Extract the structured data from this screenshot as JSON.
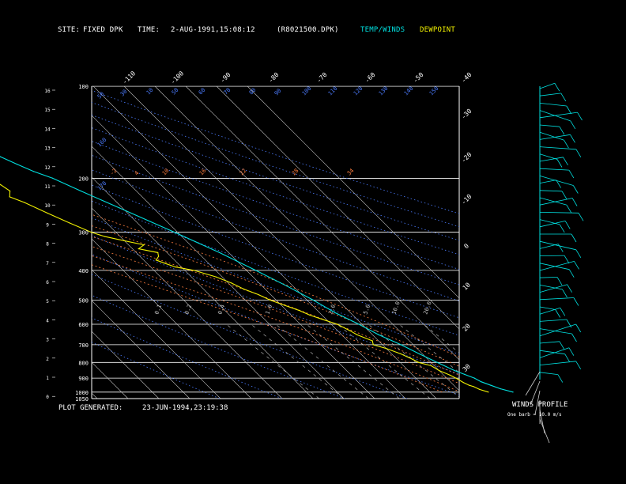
{
  "header": {
    "site_label": "SITE:",
    "site_value": "FIXED DPK",
    "time_label": "TIME:",
    "time_value": "2-AUG-1991,15:08:12",
    "file": "(R8021500.DPK)",
    "legend_temp": "TEMP/WINDS",
    "legend_dew": "DEWPOINT"
  },
  "footer": {
    "plot_generated_label": "PLOT GENERATED:",
    "plot_generated_value": "23-JUN-1994,23:19:38"
  },
  "wind_profile": {
    "title": "WINDS PROFILE",
    "note": "One barb = 10.0 m/s"
  },
  "colors": {
    "temp": "#00e0e0",
    "dewpoint": "#f0f000",
    "grid": "#ffffff",
    "isotherm": "#c8c8c8",
    "dry_adiabat": "#4c7cff",
    "moist_adiabat": "#ff7f40",
    "mixing_ratio": "#c0c0c0"
  },
  "chart_data": {
    "type": "line",
    "title": "",
    "ylabel_left_km": "",
    "pressure_ticks": [
      100,
      200,
      300,
      400,
      500,
      600,
      700,
      800,
      900,
      1000,
      1050
    ],
    "height_ticks_km": [
      16,
      15,
      14,
      13,
      12,
      11,
      10,
      9,
      8,
      7,
      6,
      5,
      4,
      3,
      2,
      1,
      0
    ],
    "isotherm_labels_top": [
      "-110",
      "-100",
      "-90",
      "-80",
      "-70",
      "-60",
      "-50",
      "-40"
    ],
    "isotherm_labels_right": [
      "-30",
      "-20",
      "-10",
      "0",
      "10",
      "20",
      "30"
    ],
    "dry_adiabat_labels": [
      "50",
      "30",
      "10",
      "50",
      "60",
      "70",
      "80",
      "90",
      "100",
      "110",
      "120",
      "130",
      "140",
      "150",
      "160",
      "170"
    ],
    "moist_adiabat_labels": [
      "-2",
      "4",
      "10",
      "16",
      "22",
      "28",
      "34"
    ],
    "mixing_ratio_labels": [
      "0.1",
      "0.2",
      "0.4",
      "1.0",
      "2.0",
      "5.0",
      "10.0",
      "20.0"
    ],
    "ylim_hpa": [
      1050,
      100
    ],
    "series": [
      {
        "name": "TEMP/WINDS",
        "points": [
          [
            1000,
            27
          ],
          [
            975,
            24
          ],
          [
            950,
            22
          ],
          [
            925,
            20
          ],
          [
            900,
            19
          ],
          [
            875,
            17
          ],
          [
            850,
            15
          ],
          [
            800,
            12
          ],
          [
            750,
            9
          ],
          [
            700,
            6
          ],
          [
            650,
            2
          ],
          [
            600,
            -1
          ],
          [
            550,
            -5
          ],
          [
            500,
            -8
          ],
          [
            450,
            -12
          ],
          [
            400,
            -17
          ],
          [
            350,
            -23
          ],
          [
            300,
            -31
          ],
          [
            250,
            -41
          ],
          [
            220,
            -48
          ],
          [
            200,
            -53
          ],
          [
            190,
            -57
          ],
          [
            180,
            -60
          ],
          [
            170,
            -63
          ],
          [
            160,
            -65
          ],
          [
            150,
            -66
          ],
          [
            140,
            -68
          ],
          [
            130,
            -70
          ],
          [
            120,
            -72
          ],
          [
            110,
            -73
          ],
          [
            100,
            -74
          ]
        ]
      },
      {
        "name": "DEWPOINT",
        "points": [
          [
            1000,
            19
          ],
          [
            980,
            17
          ],
          [
            960,
            16
          ],
          [
            950,
            15
          ],
          [
            930,
            14
          ],
          [
            900,
            13
          ],
          [
            880,
            12
          ],
          [
            850,
            10
          ],
          [
            820,
            9
          ],
          [
            800,
            6
          ],
          [
            780,
            5
          ],
          [
            750,
            3
          ],
          [
            720,
            0
          ],
          [
            700,
            -3
          ],
          [
            680,
            -2
          ],
          [
            650,
            -5
          ],
          [
            630,
            -6
          ],
          [
            600,
            -8
          ],
          [
            580,
            -11
          ],
          [
            560,
            -14
          ],
          [
            540,
            -16
          ],
          [
            520,
            -19
          ],
          [
            500,
            -22
          ],
          [
            480,
            -24
          ],
          [
            460,
            -27
          ],
          [
            440,
            -29
          ],
          [
            420,
            -32
          ],
          [
            400,
            -37
          ],
          [
            390,
            -42
          ],
          [
            380,
            -44
          ],
          [
            370,
            -46
          ],
          [
            360,
            -44
          ],
          [
            350,
            -43
          ],
          [
            340,
            -48
          ],
          [
            330,
            -45
          ],
          [
            320,
            -50
          ],
          [
            310,
            -55
          ],
          [
            300,
            -58
          ],
          [
            280,
            -62
          ],
          [
            260,
            -66
          ],
          [
            240,
            -70
          ],
          [
            230,
            -73
          ],
          [
            220,
            -71
          ],
          [
            210,
            -72
          ],
          [
            200,
            -73
          ]
        ]
      }
    ]
  }
}
